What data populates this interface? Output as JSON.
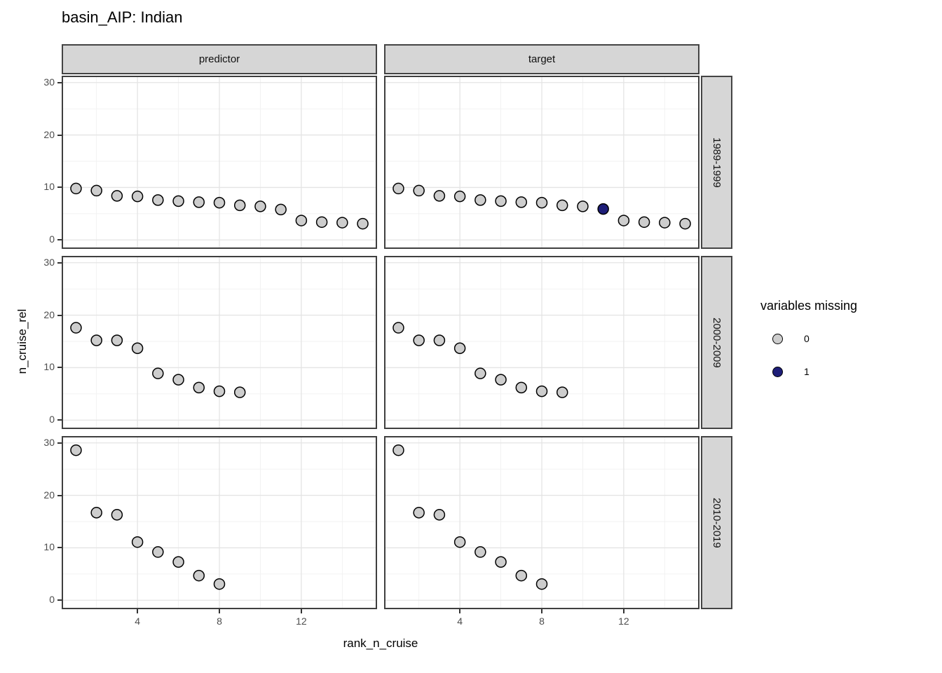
{
  "chart_data": {
    "type": "scatter",
    "title": "basin_AIP: Indian",
    "xlabel": "rank_n_cruise",
    "ylabel": "n_cruise_rel",
    "facet_columns": [
      "predictor",
      "target"
    ],
    "facet_rows": [
      "1989-1999",
      "2000-2009",
      "2010-2019"
    ],
    "x_ticks": [
      4,
      8,
      12
    ],
    "y_ticks": [
      0,
      10,
      20,
      30
    ],
    "x_minor_ticks": [
      2,
      6,
      10,
      14
    ],
    "y_minor_ticks": [
      5,
      15,
      25
    ],
    "x_range": [
      0.3,
      15.7
    ],
    "y_range": [
      -1.7,
      31.3
    ],
    "grid": "major-and-minor",
    "legend_position": "right",
    "legend": {
      "title": "variables missing",
      "entries": [
        {
          "label": "0",
          "color": "#cdcdcd"
        },
        {
          "label": "1",
          "color": "#1e1e78"
        }
      ]
    },
    "panels": [
      {
        "facet_row": "1989-1999",
        "facet_col": "predictor",
        "x": [
          1,
          2,
          3,
          4,
          5,
          6,
          7,
          8,
          9,
          10,
          11,
          12,
          13,
          14,
          15
        ],
        "y": [
          9.8,
          9.4,
          8.4,
          8.3,
          7.6,
          7.4,
          7.2,
          7.1,
          6.6,
          6.4,
          5.8,
          3.7,
          3.4,
          3.3,
          3.1
        ],
        "variables_missing": [
          0,
          0,
          0,
          0,
          0,
          0,
          0,
          0,
          0,
          0,
          0,
          0,
          0,
          0,
          0
        ]
      },
      {
        "facet_row": "1989-1999",
        "facet_col": "target",
        "x": [
          1,
          2,
          3,
          4,
          5,
          6,
          7,
          8,
          9,
          10,
          11,
          12,
          13,
          14,
          15
        ],
        "y": [
          9.8,
          9.4,
          8.4,
          8.3,
          7.6,
          7.4,
          7.2,
          7.1,
          6.6,
          6.4,
          5.9,
          3.7,
          3.4,
          3.3,
          3.1
        ],
        "variables_missing": [
          0,
          0,
          0,
          0,
          0,
          0,
          0,
          0,
          0,
          0,
          1,
          0,
          0,
          0,
          0
        ]
      },
      {
        "facet_row": "2000-2009",
        "facet_col": "predictor",
        "x": [
          1,
          2,
          3,
          4,
          5,
          6,
          7,
          8,
          9
        ],
        "y": [
          17.6,
          15.2,
          15.2,
          13.7,
          8.9,
          7.7,
          6.2,
          5.5,
          5.3
        ],
        "variables_missing": [
          0,
          0,
          0,
          0,
          0,
          0,
          0,
          0,
          0
        ]
      },
      {
        "facet_row": "2000-2009",
        "facet_col": "target",
        "x": [
          1,
          2,
          3,
          4,
          5,
          6,
          7,
          8,
          9
        ],
        "y": [
          17.6,
          15.2,
          15.2,
          13.7,
          8.9,
          7.7,
          6.2,
          5.5,
          5.3
        ],
        "variables_missing": [
          0,
          0,
          0,
          0,
          0,
          0,
          0,
          0,
          0
        ]
      },
      {
        "facet_row": "2010-2019",
        "facet_col": "predictor",
        "x": [
          1,
          2,
          3,
          4,
          5,
          6,
          7,
          8
        ],
        "y": [
          28.6,
          16.7,
          16.3,
          11.1,
          9.2,
          7.3,
          4.7,
          3.1
        ],
        "variables_missing": [
          0,
          0,
          0,
          0,
          0,
          0,
          0,
          0
        ]
      },
      {
        "facet_row": "2010-2019",
        "facet_col": "target",
        "x": [
          1,
          2,
          3,
          4,
          5,
          6,
          7,
          8
        ],
        "y": [
          28.6,
          16.7,
          16.3,
          11.1,
          9.2,
          7.3,
          4.7,
          3.1
        ],
        "variables_missing": [
          0,
          0,
          0,
          0,
          0,
          0,
          0,
          0
        ]
      }
    ]
  },
  "styles": {
    "strip_background": "#d6d6d6",
    "strip_border": "#444444",
    "panel_border": "#3f3f3f",
    "grid_major": "#e4e4e4",
    "grid_minor": "#f1f1f1",
    "tick_label_color": "#4d4d4d",
    "point_stroke": "#000000",
    "point_gray": "#cdcdcd",
    "point_navy": "#1e1e78"
  }
}
